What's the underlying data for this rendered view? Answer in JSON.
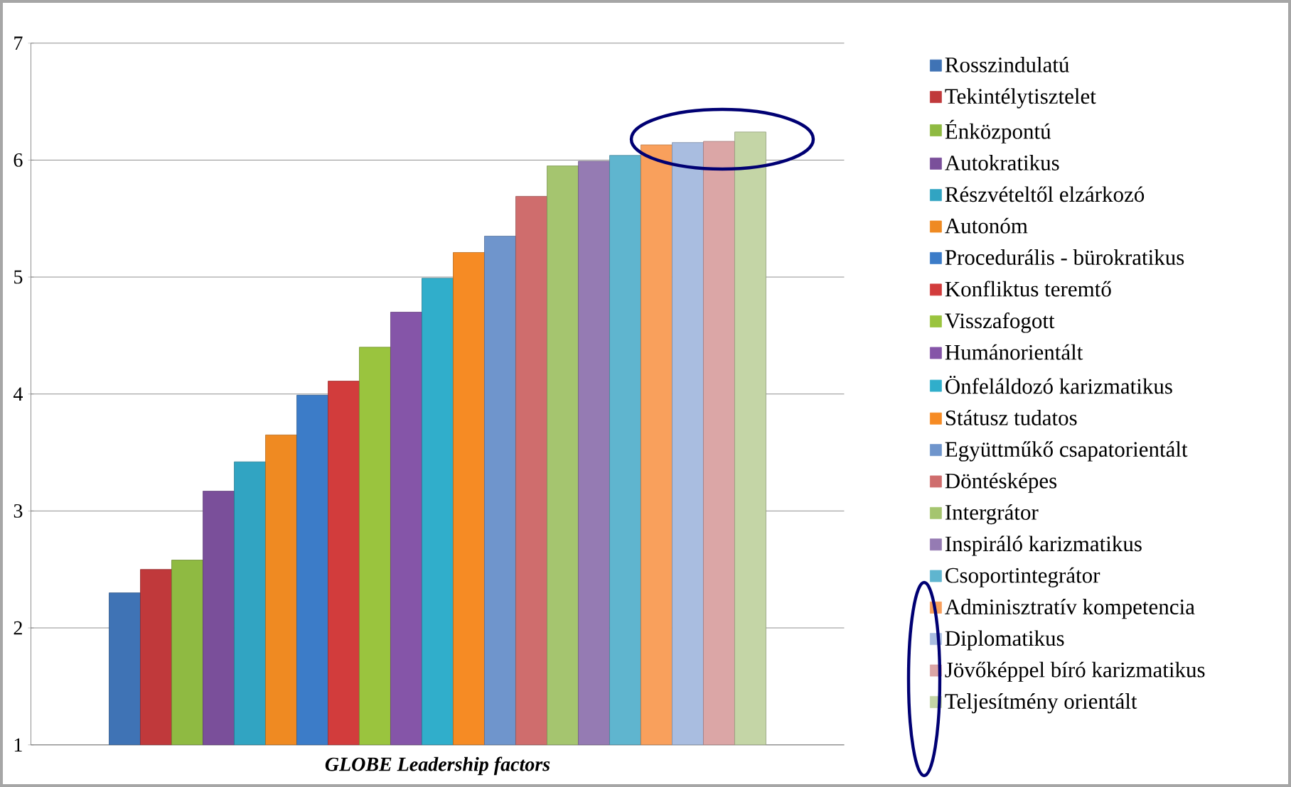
{
  "chart_data": {
    "type": "bar",
    "xlabel": "GLOBE Leadership factors",
    "categories": [
      null
    ],
    "ylim": [
      1,
      7
    ],
    "yticks": [
      1,
      2,
      3,
      4,
      5,
      6,
      7
    ],
    "grid": "y",
    "legend": "right",
    "series": [
      {
        "name": "Rosszindulatú",
        "color": "#3f73b5",
        "values": [
          2.3
        ]
      },
      {
        "name": "Tekintélytisztelet",
        "color": "#c0393b",
        "values": [
          2.5
        ]
      },
      {
        "name": "Énközpontú",
        "color": "#8fba42",
        "values": [
          2.58
        ]
      },
      {
        "name": "Autokratikus",
        "color": "#7a4f9a",
        "values": [
          3.17
        ]
      },
      {
        "name": "Részvételtől elzárkozó",
        "color": "#31a4c2",
        "values": [
          3.42
        ]
      },
      {
        "name": "Autonóm",
        "color": "#ef8a22",
        "values": [
          3.65
        ]
      },
      {
        "name": "Procedurális - bürokratikus",
        "color": "#3c7cc8",
        "values": [
          3.99
        ]
      },
      {
        "name": "Konfliktus teremtő",
        "color": "#d23c3c",
        "values": [
          4.11
        ]
      },
      {
        "name": "Visszafogott",
        "color": "#9ac43e",
        "values": [
          4.4
        ]
      },
      {
        "name": "Humánorientált",
        "color": "#8555a8",
        "values": [
          4.7
        ]
      },
      {
        "name": "Önfeláldozó karizmatikus",
        "color": "#30aecb",
        "values": [
          4.99
        ]
      },
      {
        "name": "Státusz tudatos",
        "color": "#f68b24",
        "values": [
          5.21
        ]
      },
      {
        "name": "Együttműkő csapatorientált",
        "color": "#6f95cc",
        "values": [
          5.35
        ]
      },
      {
        "name": "Döntésképes",
        "color": "#cf6d6d",
        "values": [
          5.69
        ]
      },
      {
        "name": "Intergrátor",
        "color": "#a5c56f",
        "values": [
          5.95
        ]
      },
      {
        "name": "Inspiráló karizmatikus",
        "color": "#957bb3",
        "values": [
          5.99
        ]
      },
      {
        "name": "Csoportintegrátor",
        "color": "#5fb5cf",
        "values": [
          6.04
        ]
      },
      {
        "name": "Adminisztratív kompetencia",
        "color": "#f9a05c",
        "values": [
          6.13
        ]
      },
      {
        "name": "Diplomatikus",
        "color": "#a9bde0",
        "values": [
          6.15
        ]
      },
      {
        "name": "Jövőképpel bíró karizmatikus",
        "color": "#dba6a6",
        "values": [
          6.16
        ]
      },
      {
        "name": "Teljesítmény orientált",
        "color": "#c4d5a6",
        "values": [
          6.24
        ]
      }
    ]
  }
}
